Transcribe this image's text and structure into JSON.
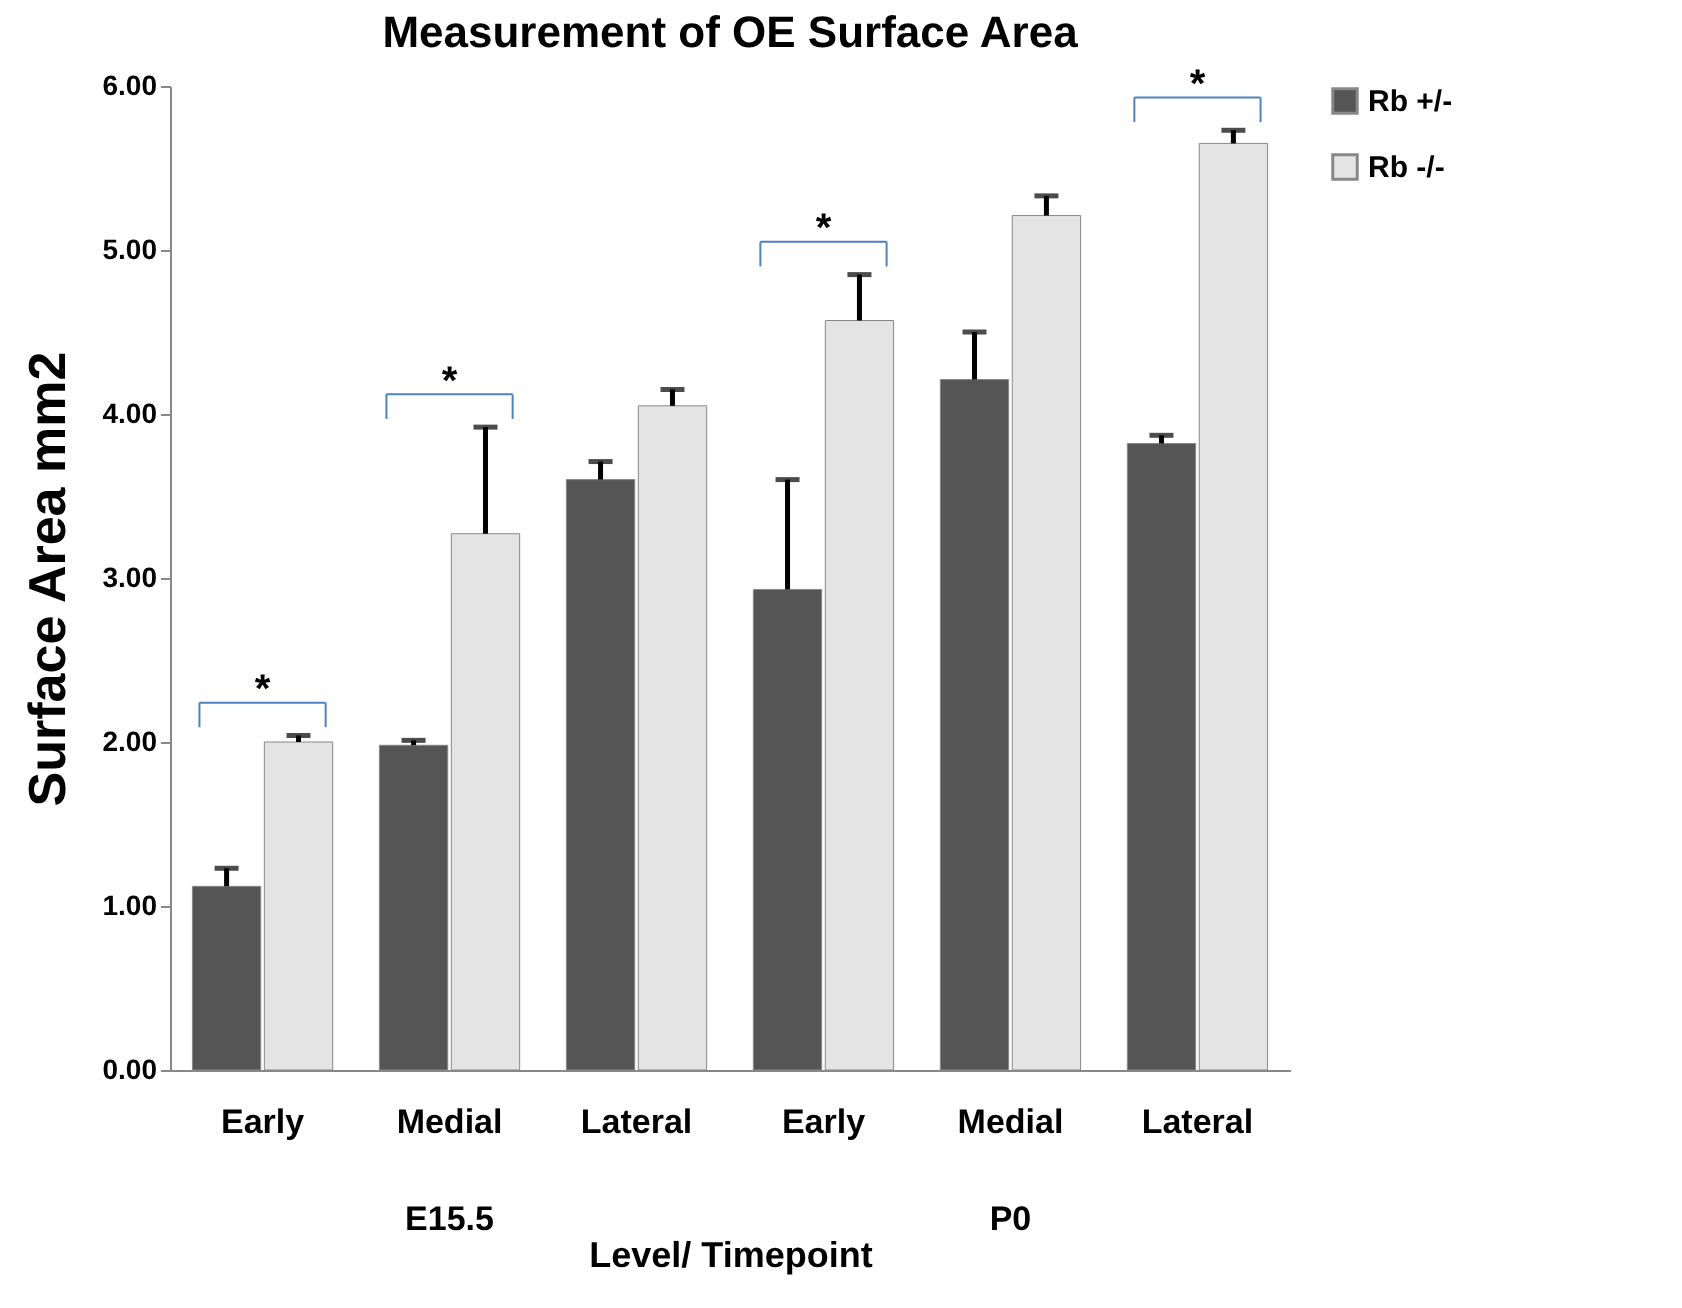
{
  "chart_data": {
    "type": "bar",
    "title": "Measurement of OE Surface Area",
    "xlabel": "Level/ Timepoint",
    "ylabel": "Surface Area mm2",
    "categories": [
      "Early",
      "Medial",
      "Lateral",
      "Early",
      "Medial",
      "Lateral"
    ],
    "series": [
      {
        "name": "Rb +/-",
        "color": "#555555",
        "values": [
          1.12,
          1.98,
          3.6,
          2.93,
          4.21,
          3.82
        ],
        "errors": [
          [
            1.12,
            1.23
          ],
          [
            1.98,
            2.01
          ],
          [
            3.6,
            3.71
          ],
          [
            2.93,
            3.6
          ],
          [
            4.21,
            4.5
          ],
          [
            3.82,
            3.87
          ]
        ]
      },
      {
        "name": "Rb -/-",
        "color": "#e4e4e4",
        "values": [
          2.0,
          3.27,
          4.05,
          4.57,
          5.21,
          5.65
        ],
        "errors": [
          [
            2.0,
            2.04
          ],
          [
            3.27,
            3.92
          ],
          [
            4.05,
            4.15
          ],
          [
            4.57,
            4.85
          ],
          [
            5.21,
            5.33
          ],
          [
            5.65,
            5.73
          ]
        ]
      }
    ],
    "ylim": [
      0,
      6
    ],
    "yticks": [
      {
        "value": 0,
        "label": "0.00"
      },
      {
        "value": 1,
        "label": "1.00"
      },
      {
        "value": 2,
        "label": "2.00"
      },
      {
        "value": 3,
        "label": "3.00"
      },
      {
        "value": 4,
        "label": "4.00"
      },
      {
        "value": 5,
        "label": "5.00"
      },
      {
        "value": 6,
        "label": "6.00"
      }
    ],
    "legend": "right",
    "grid": false,
    "annotations": [
      "*",
      "*",
      "*",
      "*",
      "E15.5",
      "P0"
    ]
  }
}
